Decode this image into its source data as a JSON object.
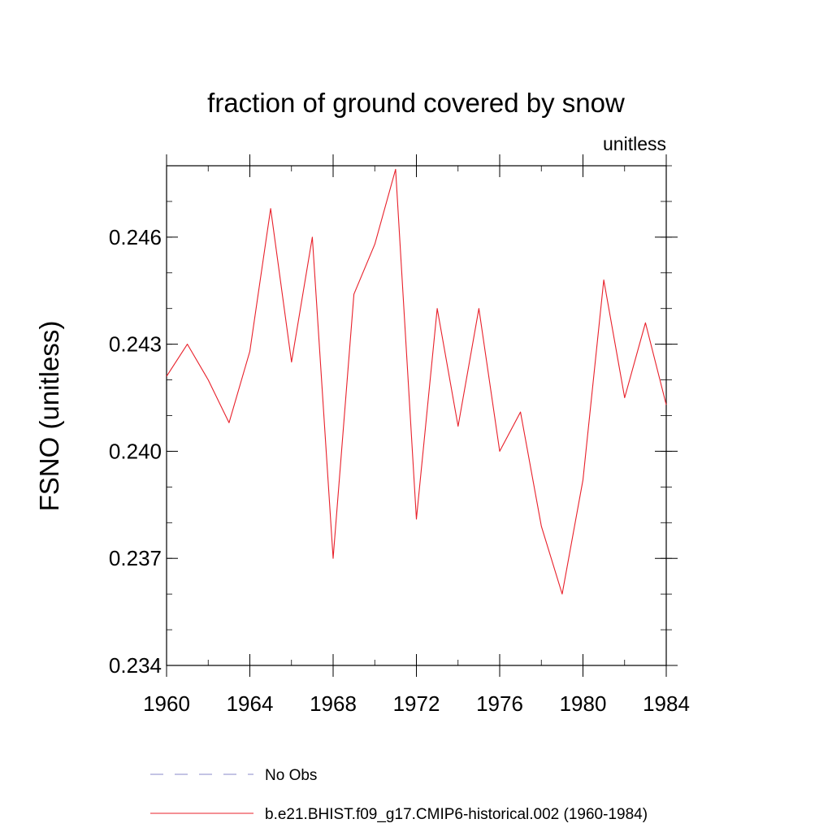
{
  "chart_data": {
    "type": "line",
    "title": "fraction of ground covered by snow",
    "subtitle": "unitless",
    "xlabel": "",
    "ylabel": "FSNO  (unitless)",
    "xlim": [
      1960,
      1984
    ],
    "ylim": [
      0.234,
      0.248
    ],
    "x_ticks": [
      1960,
      1964,
      1968,
      1972,
      1976,
      1980,
      1984
    ],
    "x_tick_labels": [
      "1960",
      "1964",
      "1968",
      "1972",
      "1976",
      "1980",
      "1984"
    ],
    "y_ticks": [
      0.234,
      0.237,
      0.24,
      0.243,
      0.246
    ],
    "y_tick_labels": [
      "0.234",
      "0.237",
      "0.240",
      "0.243",
      "0.246"
    ],
    "grid": false,
    "legend_position": "bottom",
    "series": [
      {
        "name": "No Obs",
        "color": "#8a8ac8",
        "dash": "dashed",
        "x": [],
        "y": []
      },
      {
        "name": "b.e21.BHIST.f09_g17.CMIP6-historical.002 (1960-1984)",
        "color": "#e8202a",
        "dash": "solid",
        "x": [
          1960,
          1961,
          1962,
          1963,
          1964,
          1965,
          1966,
          1967,
          1968,
          1969,
          1970,
          1971,
          1972,
          1973,
          1974,
          1975,
          1976,
          1977,
          1978,
          1979,
          1980,
          1981,
          1982,
          1983,
          1984
        ],
        "y": [
          0.2421,
          0.243,
          0.242,
          0.2408,
          0.2428,
          0.2468,
          0.2425,
          0.246,
          0.237,
          0.2444,
          0.2458,
          0.2479,
          0.2381,
          0.244,
          0.2407,
          0.244,
          0.24,
          0.2411,
          0.2379,
          0.236,
          0.2392,
          0.2448,
          0.2415,
          0.2436,
          0.2413
        ]
      }
    ]
  }
}
